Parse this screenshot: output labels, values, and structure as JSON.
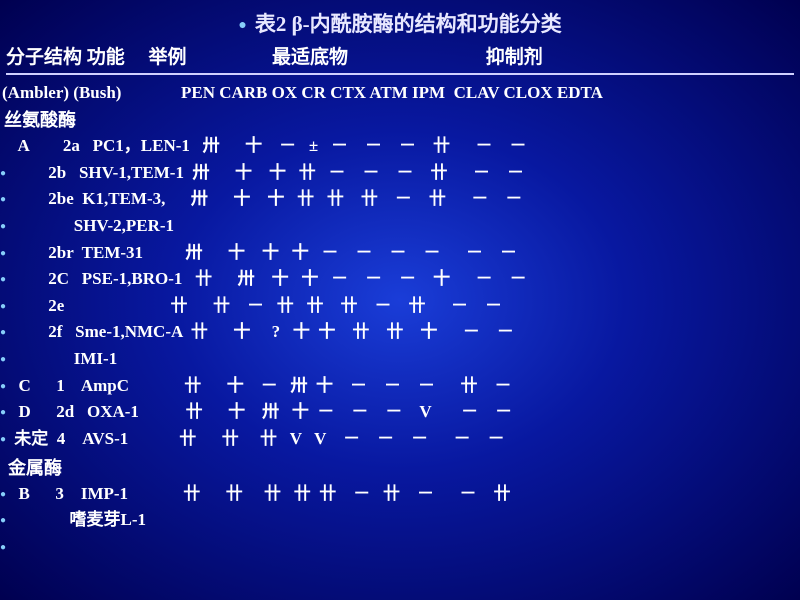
{
  "title": "表2    β-内酰胺酶的结构和功能分类",
  "header_groups": "分子结构 功能     举例                  最适底物                             抑制剂",
  "col_header": "(Ambler) (Bush)              PEN CARB OX CR CTX ATM IPM  CLAV CLOX EDTA",
  "section1": "丝氨酸酶",
  "section2": "金属酶",
  "rows": [
    {
      "b": false,
      "t": "  A        2a   PC1，LEN-1   卅      十    －   ±   －    －    －    卄      －    －"
    },
    {
      "b": true,
      "t": "         2b   SHV-1,TEM-1  卅      十    十   卄   －    －    －    卄      －    －"
    },
    {
      "b": true,
      "t": "         2be  K1,TEM-3,      卅      十    十   卄   卄    卄    －    卄      －    －"
    },
    {
      "b": true,
      "t": "               SHV-2,PER-1"
    },
    {
      "b": true,
      "t": "         2br  TEM-31          卅      十    十   十   －    －    －    －      －    －"
    },
    {
      "b": true,
      "t": "         2C   PSE-1,BRO-1   卄      卅    十   十   －    －    －    十      －    －"
    },
    {
      "b": true,
      "t": "         2e                         卄      卄    －   卄   卄    卄    －    卄      －    －"
    },
    {
      "b": true,
      "t": "         2f   Sme-1,NMC-A  卄      十     ?   十  十    卄    卄    十      －    －"
    },
    {
      "b": true,
      "t": "               IMI-1"
    },
    {
      "b": true,
      "t": "  C      1    AmpC             卄      十    －   卅  十    －    －    －      卄    －"
    },
    {
      "b": true,
      "t": "  D      2d   OXA-1           卄      十    卅   十  －    －    －    V       －    －"
    },
    {
      "b": true,
      "t": " 未定  4    AVS-1            卄      卄     卄   V   V    －    －    －      －    －"
    }
  ],
  "rows2": [
    {
      "b": true,
      "t": "  B      3    IMP-1             卄      卄     卄   卄  卄    －   卄    －      －    卄"
    },
    {
      "b": true,
      "t": "              嗜麦芽L-1"
    },
    {
      "b": true,
      "t": ""
    }
  ],
  "colors": {
    "bullet": "#87cefa",
    "text": "#ffffff",
    "bg_center": "#1a3dd8",
    "bg_edge": "#000050"
  }
}
